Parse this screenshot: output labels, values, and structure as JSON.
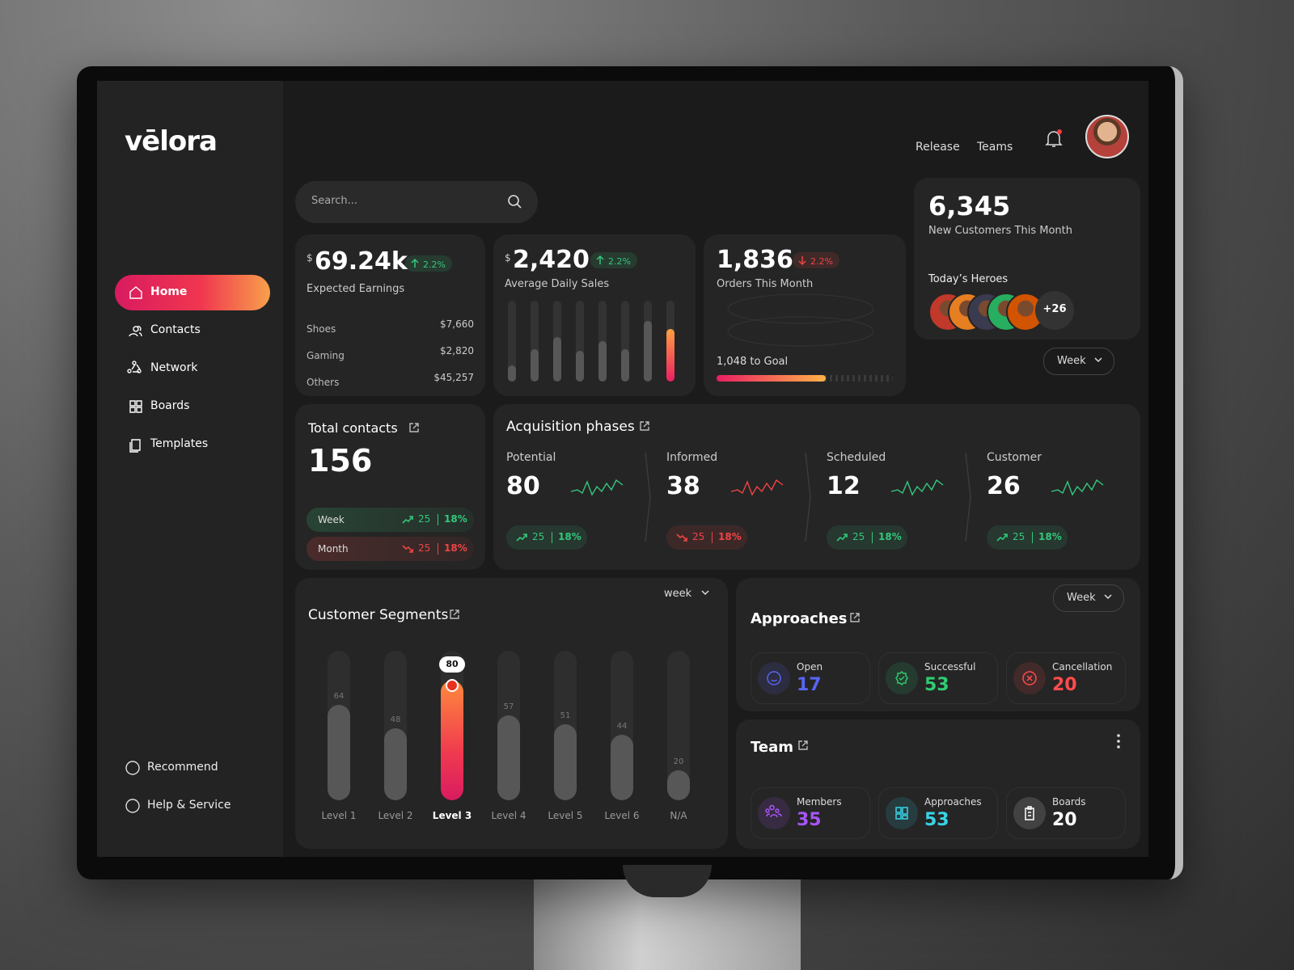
{
  "brand": "vēlora",
  "search_placeholder": "Search...",
  "top_links": [
    "Release",
    "Teams"
  ],
  "sidebar": {
    "items": [
      "Home",
      "Contacts",
      "Network",
      "Boards",
      "Templates"
    ],
    "active": 0,
    "footer": [
      "Recommend",
      "Help & Service"
    ]
  },
  "earnings": {
    "currency": "$",
    "value": "69.24k",
    "change": "2.2%",
    "trend": "up",
    "label": "Expected Earnings",
    "rows": [
      {
        "name": "Shoes",
        "amount": "$7,660"
      },
      {
        "name": "Gaming",
        "amount": "$2,820"
      },
      {
        "name": "Others",
        "amount": "$45,257"
      }
    ]
  },
  "daily_sales": {
    "currency": "$",
    "value": "2,420",
    "change": "2.2%",
    "trend": "up",
    "label": "Average Daily Sales",
    "bars": [
      20,
      40,
      55,
      38,
      50,
      40,
      75,
      65
    ],
    "highlight": 7,
    "ylim": [
      0,
      100
    ]
  },
  "orders": {
    "value": "1,836",
    "change": "2.2%",
    "trend": "down",
    "label": "Orders This Month",
    "goal_label": "1,048 to Goal",
    "progress": 62
  },
  "new_customers": {
    "value": "6,345",
    "label": "New Customers This Month",
    "heroes_label": "Today’s Heroes",
    "avatar_colors": [
      "#c0392b",
      "#e67e22",
      "#3b3b4f",
      "#27ae60",
      "#d35400"
    ],
    "more": "+26"
  },
  "total_contacts": {
    "title": "Total contacts",
    "value": "156",
    "rows": [
      {
        "label": "Week",
        "count": "25",
        "pct": "18%",
        "trend": "up"
      },
      {
        "label": "Month",
        "count": "25",
        "pct": "18%",
        "trend": "down"
      }
    ]
  },
  "acquisition": {
    "title": "Acquisition phases",
    "period": "Week",
    "phases": [
      {
        "name": "Potential",
        "value": "80",
        "count": "25",
        "pct": "18%",
        "trend": "up"
      },
      {
        "name": "Informed",
        "value": "38",
        "count": "25",
        "pct": "18%",
        "trend": "down"
      },
      {
        "name": "Scheduled",
        "value": "12",
        "count": "25",
        "pct": "18%",
        "trend": "up"
      },
      {
        "name": "Customer",
        "value": "26",
        "count": "25",
        "pct": "18%",
        "trend": "up"
      }
    ]
  },
  "segments": {
    "title": "Customer Segments",
    "period": "week",
    "categories": [
      "Level 1",
      "Level 2",
      "Level 3",
      "Level 4",
      "Level 5",
      "Level 6",
      "N/A"
    ],
    "values": [
      64,
      48,
      80,
      57,
      51,
      44,
      20
    ],
    "highlight": 2,
    "ylim": [
      0,
      100
    ]
  },
  "approaches": {
    "title": "Approaches",
    "period": "Week",
    "items": [
      {
        "label": "Open",
        "value": "17",
        "color": "#5865f2"
      },
      {
        "label": "Successful",
        "value": "53",
        "color": "#2ecc71"
      },
      {
        "label": "Cancellation",
        "value": "20",
        "color": "#ff4b4b"
      }
    ]
  },
  "team": {
    "title": "Team",
    "items": [
      {
        "label": "Members",
        "value": "35",
        "color": "#a855f7"
      },
      {
        "label": "Approaches",
        "value": "53",
        "color": "#38d4e8"
      },
      {
        "label": "Boards",
        "value": "20",
        "color": "#ffffff"
      }
    ]
  }
}
